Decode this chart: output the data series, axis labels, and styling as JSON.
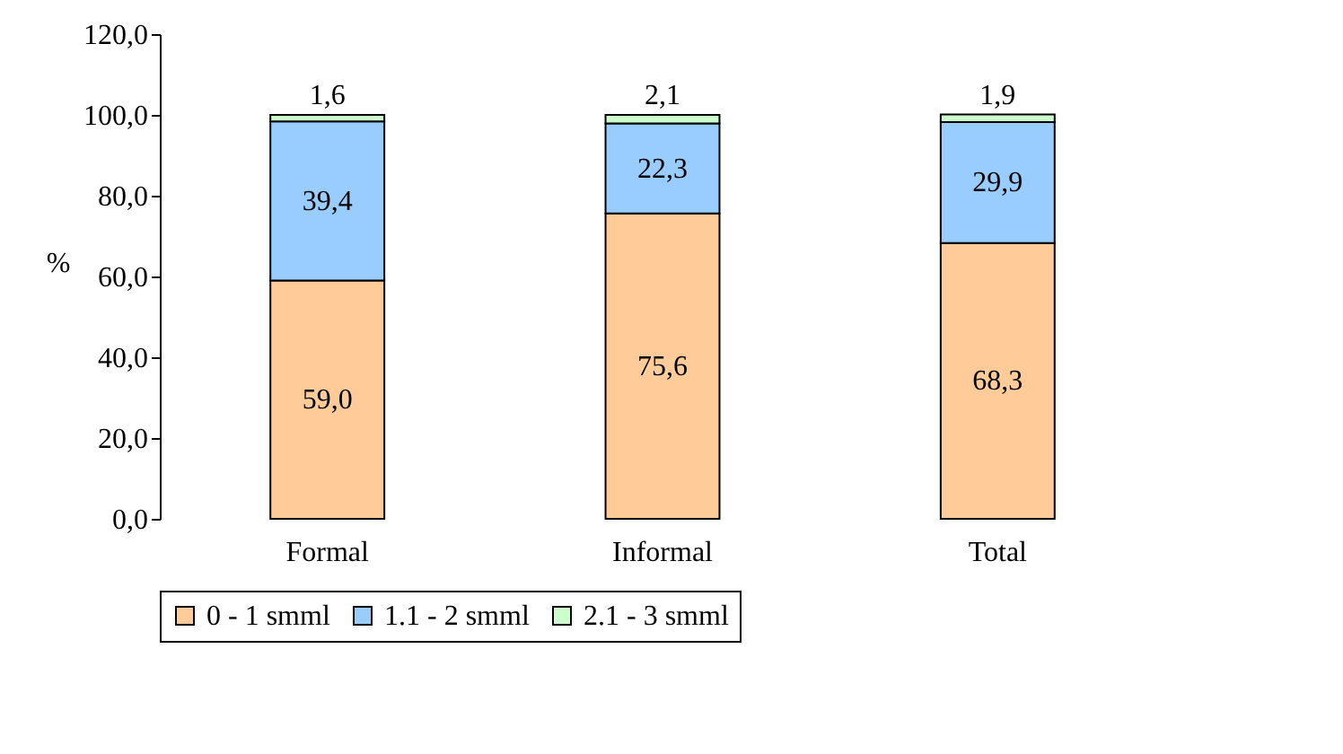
{
  "chart_data": {
    "type": "bar",
    "stacked": true,
    "ylabel": "%",
    "categories": [
      "Formal",
      "Informal",
      "Total"
    ],
    "series": [
      {
        "name": "0 - 1 smml",
        "color": "#ffcc99",
        "values": [
          59.0,
          75.6,
          68.3
        ],
        "value_labels": [
          "59,0",
          "75,6",
          "68,3"
        ]
      },
      {
        "name": "1.1 - 2 smml",
        "color": "#99ccff",
        "values": [
          39.4,
          22.3,
          29.9
        ],
        "value_labels": [
          "39,4",
          "22,3",
          "29,9"
        ]
      },
      {
        "name": "2.1 - 3 smml",
        "color": "#ccffcc",
        "values": [
          1.6,
          2.1,
          1.9
        ],
        "value_labels": [
          "1,6",
          "2,1",
          "1,9"
        ]
      }
    ],
    "ylim": [
      0,
      120
    ],
    "yticks": [
      {
        "value": 0,
        "label": "0,0"
      },
      {
        "value": 20,
        "label": "20,0"
      },
      {
        "value": 40,
        "label": "40,0"
      },
      {
        "value": 60,
        "label": "60,0"
      },
      {
        "value": 80,
        "label": "80,0"
      },
      {
        "value": 100,
        "label": "100,0"
      },
      {
        "value": 120,
        "label": "120,0"
      }
    ],
    "grid": false,
    "legend": "bottom"
  }
}
